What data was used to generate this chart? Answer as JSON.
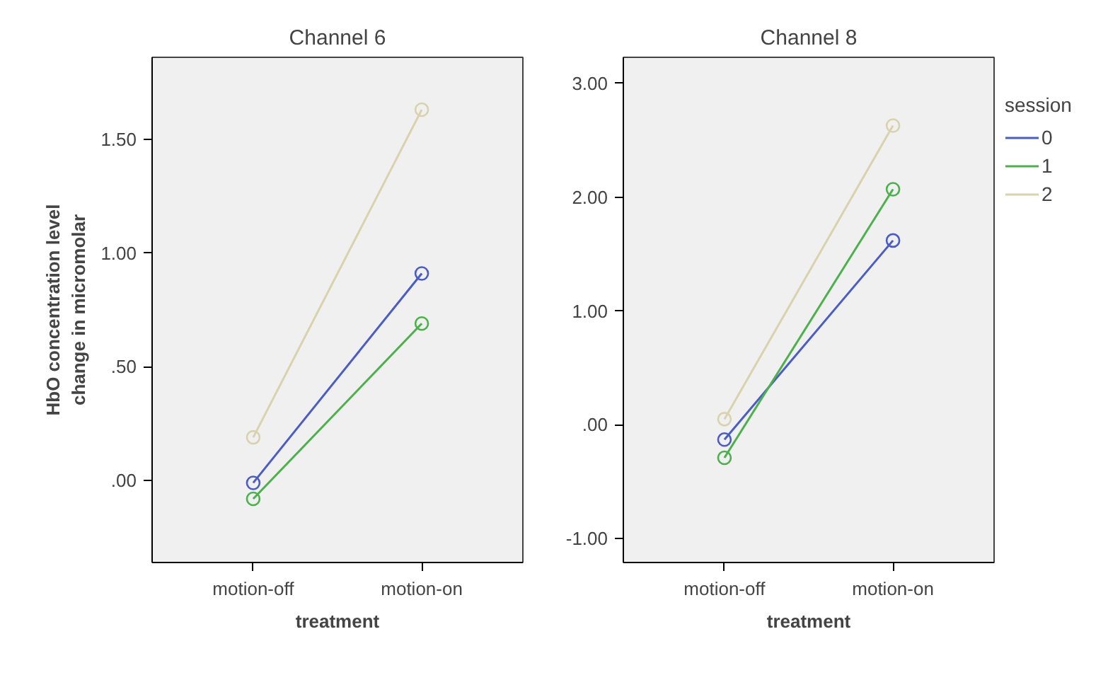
{
  "chart_data": [
    {
      "type": "line",
      "title": "Channel 6",
      "xlabel": "treatment",
      "ylabel": "HbO concentration level\nchange in micromolar",
      "categories": [
        "motion-off",
        "motion-on"
      ],
      "series": [
        {
          "color": "#4b5cc4",
          "values": [
            -0.01,
            0.91
          ]
        },
        {
          "color": "#4cb04c",
          "values": [
            -0.08,
            0.69
          ]
        },
        {
          "color": "#d9d2ae",
          "values": [
            0.19,
            1.63
          ]
        }
      ],
      "ylim": [
        -0.36,
        1.86
      ],
      "yticks": [
        {
          "value": 0,
          "label": ".00"
        },
        {
          "value": 0.5,
          "label": ".50"
        },
        {
          "value": 1,
          "label": "1.00"
        },
        {
          "value": 1.5,
          "label": "1.50"
        }
      ],
      "marker": "circle",
      "line_style": "solid",
      "grid": false,
      "legend": false
    },
    {
      "type": "line",
      "title": "Channel 8",
      "xlabel": "treatment",
      "legend_title": "session",
      "categories": [
        "motion-off",
        "motion-on"
      ],
      "series": [
        {
          "name": "0",
          "color": "#4b5cc4",
          "values": [
            -0.13,
            1.62
          ]
        },
        {
          "name": "1",
          "color": "#4cb04c",
          "values": [
            -0.29,
            2.07
          ]
        },
        {
          "name": "2",
          "color": "#d9d2ae",
          "values": [
            0.05,
            2.63
          ]
        }
      ],
      "ylim": [
        -1.21,
        3.23
      ],
      "yticks": [
        {
          "value": -1,
          "label": "-1.00"
        },
        {
          "value": 0,
          "label": ".00"
        },
        {
          "value": 1,
          "label": "1.00"
        },
        {
          "value": 2,
          "label": "2.00"
        },
        {
          "value": 3,
          "label": "3.00"
        }
      ],
      "marker": "circle",
      "line_style": "solid",
      "grid": false,
      "legend": "right"
    }
  ]
}
